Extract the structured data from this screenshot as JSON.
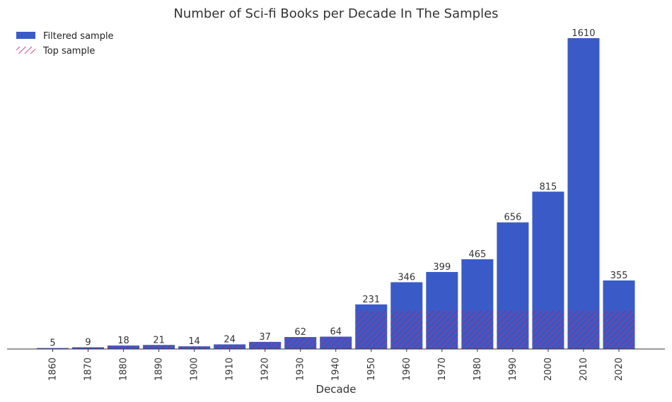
{
  "chart_data": {
    "type": "bar",
    "title": "Number of Sci-fi Books per Decade In The Samples",
    "xlabel": "Decade",
    "ylabel": "",
    "categories": [
      "1860",
      "1870",
      "1880",
      "1890",
      "1900",
      "1910",
      "1920",
      "1930",
      "1940",
      "1950",
      "1960",
      "1970",
      "1980",
      "1990",
      "2000",
      "2010",
      "2020"
    ],
    "series": [
      {
        "name": "Filtered sample",
        "color": "#3a5bc7",
        "values": [
          5,
          9,
          18,
          21,
          14,
          24,
          37,
          62,
          64,
          231,
          346,
          399,
          465,
          656,
          815,
          1610,
          355
        ]
      },
      {
        "name": "Top sample",
        "color": "#c2185b",
        "pattern": "hatch",
        "values": [
          5,
          9,
          18,
          21,
          14,
          24,
          37,
          62,
          64,
          200,
          200,
          200,
          200,
          200,
          200,
          200,
          200
        ]
      }
    ],
    "ylim": [
      0,
      1650
    ],
    "grid": false,
    "legend": "top-left"
  }
}
